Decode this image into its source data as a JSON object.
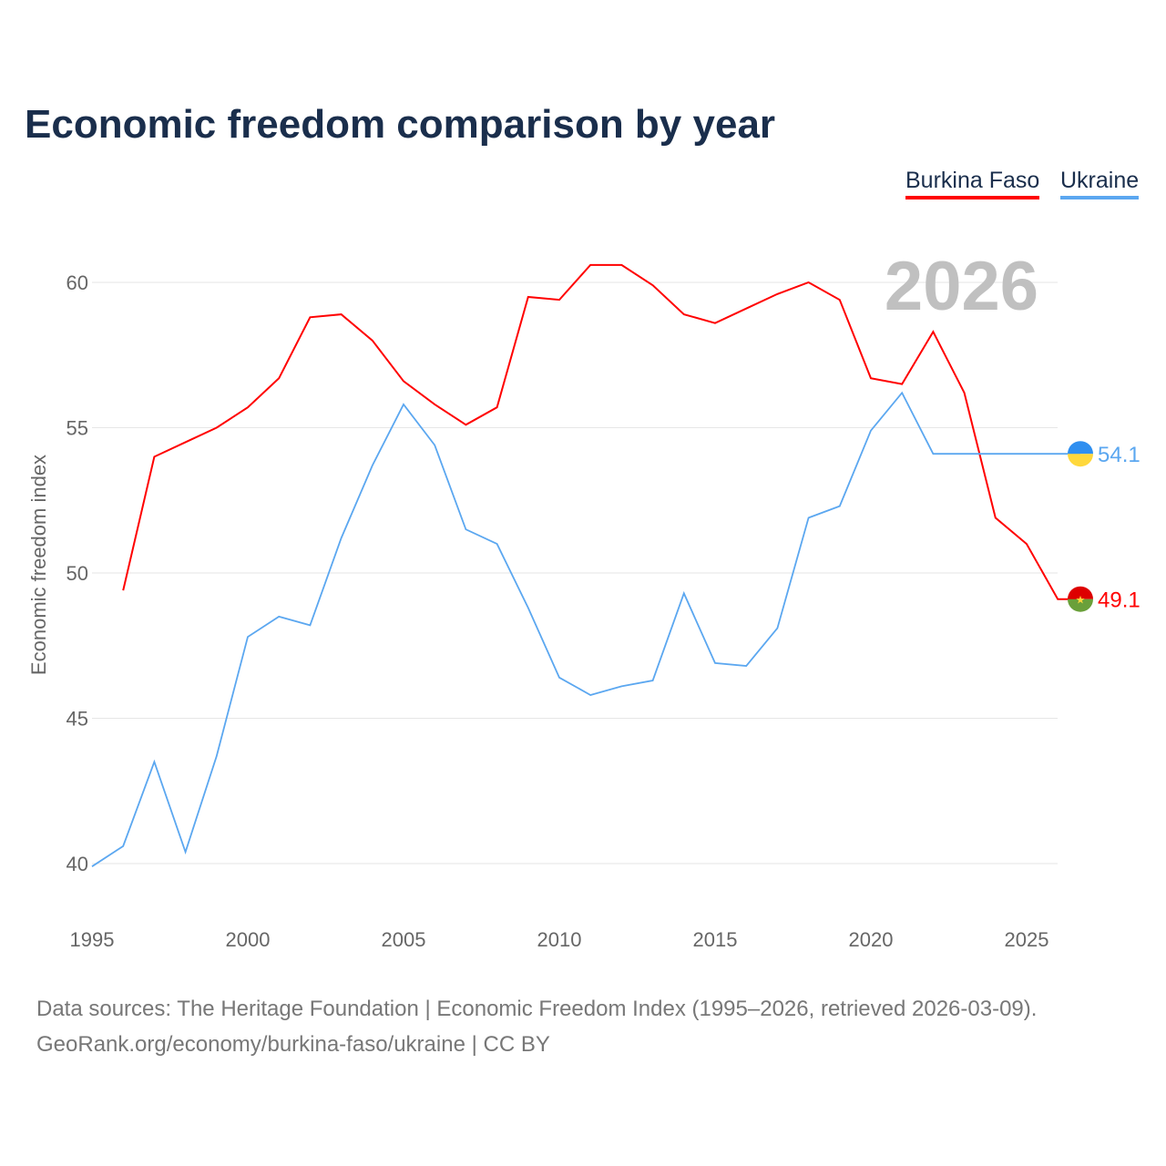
{
  "chart_data": {
    "type": "line",
    "title": "Economic freedom comparison by year",
    "ylabel": "Economic freedom index",
    "xlabel": "",
    "xlim": [
      1995,
      2026
    ],
    "ylim": [
      40,
      60
    ],
    "xticks": [
      "1995",
      "2000",
      "2005",
      "2010",
      "2015",
      "2020",
      "2025"
    ],
    "yticks": [
      "40",
      "45",
      "50",
      "55",
      "60"
    ],
    "year_label": "2026",
    "grid": true,
    "legend_position": "top-right",
    "series": [
      {
        "name": "Burkina Faso",
        "color": "#ff0000",
        "end_label": "49.1",
        "x": [
          1996,
          1997,
          1998,
          1999,
          2000,
          2001,
          2002,
          2003,
          2004,
          2005,
          2006,
          2007,
          2008,
          2009,
          2010,
          2011,
          2012,
          2013,
          2014,
          2015,
          2016,
          2017,
          2018,
          2019,
          2020,
          2021,
          2022,
          2023,
          2024,
          2025,
          2026
        ],
        "values": [
          49.4,
          54.0,
          54.5,
          55.0,
          55.7,
          56.7,
          58.8,
          58.9,
          58.0,
          56.6,
          55.8,
          55.1,
          55.7,
          59.5,
          59.4,
          60.6,
          60.6,
          59.9,
          58.9,
          58.6,
          59.1,
          59.6,
          60.0,
          59.4,
          56.7,
          56.5,
          58.3,
          56.2,
          51.9,
          51.0,
          49.1
        ]
      },
      {
        "name": "Ukraine",
        "color": "#5ba7f0",
        "end_label": "54.1",
        "x": [
          1995,
          1996,
          1997,
          1998,
          1999,
          2000,
          2001,
          2002,
          2003,
          2004,
          2005,
          2006,
          2007,
          2008,
          2009,
          2010,
          2011,
          2012,
          2013,
          2014,
          2015,
          2016,
          2017,
          2018,
          2019,
          2020,
          2021,
          2022,
          2023,
          2024,
          2025,
          2026
        ],
        "values": [
          39.9,
          40.6,
          43.5,
          40.4,
          43.7,
          47.8,
          48.5,
          48.2,
          51.2,
          53.7,
          55.8,
          54.4,
          51.5,
          51.0,
          48.8,
          46.4,
          45.8,
          46.1,
          46.3,
          49.3,
          46.9,
          46.8,
          48.1,
          51.9,
          52.3,
          54.9,
          56.2,
          54.1,
          54.1,
          54.1,
          54.1,
          54.1
        ]
      }
    ]
  },
  "source": {
    "line1": "Data sources: The Heritage Foundation | Economic Freedom Index (1995–2026, retrieved 2026-03-09).",
    "line2": "GeoRank.org/economy/burkina-faso/ukraine | CC BY"
  }
}
